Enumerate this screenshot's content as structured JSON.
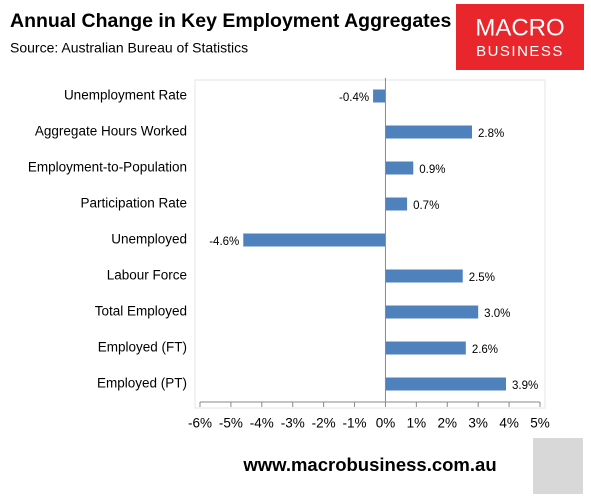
{
  "chart_data": {
    "type": "bar",
    "orientation": "horizontal",
    "title": "Annual Change in Key Employment Aggregates",
    "subtitle": "Source: Australian Bureau of Statistics",
    "logo": [
      "MACRO",
      "BUSINESS"
    ],
    "footer": "www.macrobusiness.com.au",
    "categories": [
      "Unemployment Rate",
      "Aggregate Hours Worked",
      "Employment-to-Population",
      "Participation Rate",
      "Unemployed",
      "Labour Force",
      "Total Employed",
      "Employed (FT)",
      "Employed (PT)"
    ],
    "values": [
      -0.4,
      2.8,
      0.9,
      0.7,
      -4.6,
      2.5,
      3.0,
      2.6,
      3.9
    ],
    "value_labels": [
      "-0.4%",
      "2.8%",
      "0.9%",
      "0.7%",
      "-4.6%",
      "2.5%",
      "3.0%",
      "2.6%",
      "3.9%"
    ],
    "color": "#4f81bd",
    "xlim": [
      -6,
      5
    ],
    "xticks": [
      {
        "value": -6,
        "label": "-6%"
      },
      {
        "value": -5,
        "label": "-5%"
      },
      {
        "value": -4,
        "label": "-4%"
      },
      {
        "value": -3,
        "label": "-3%"
      },
      {
        "value": -2,
        "label": "-2%"
      },
      {
        "value": -1,
        "label": "-1%"
      },
      {
        "value": 0,
        "label": "0%"
      },
      {
        "value": 1,
        "label": "1%"
      },
      {
        "value": 2,
        "label": "2%"
      },
      {
        "value": 3,
        "label": "3%"
      },
      {
        "value": 4,
        "label": "4%"
      },
      {
        "value": 5,
        "label": "5%"
      }
    ]
  }
}
